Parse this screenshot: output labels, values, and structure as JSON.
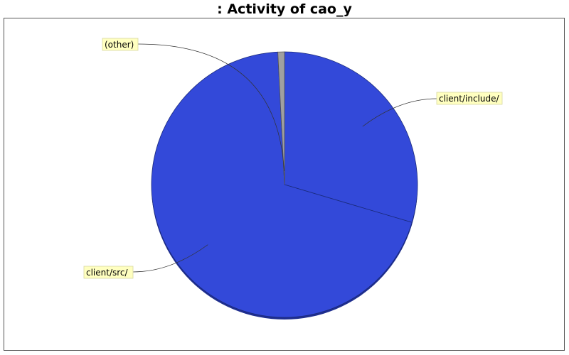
{
  "chart_data": {
    "type": "pie",
    "title": ": Activity of cao_y",
    "slices": [
      {
        "label": "client/include/",
        "value": 29.6,
        "color": "#3349d9"
      },
      {
        "label": "client/src/",
        "value": 69.6,
        "color": "#3349d9"
      },
      {
        "label": "(other)",
        "value": 0.8,
        "color": "#a0a0a0"
      }
    ],
    "start_angle": "top, clockwise",
    "legend": "callout labels"
  }
}
